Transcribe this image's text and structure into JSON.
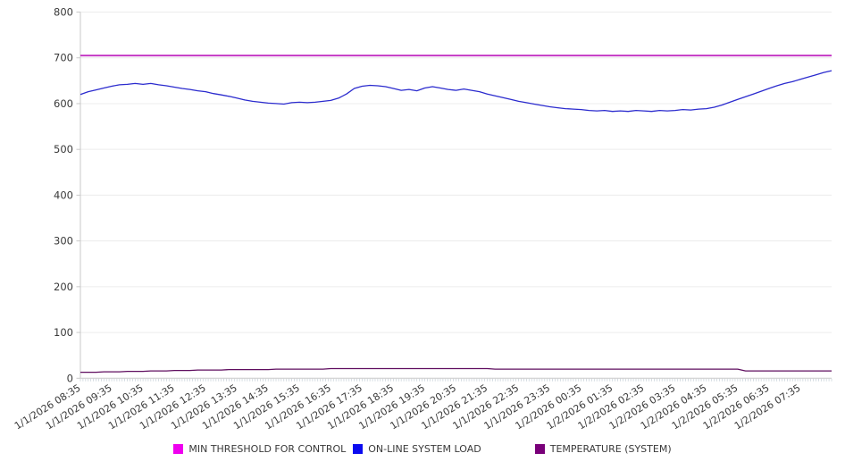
{
  "chart_data": {
    "type": "line",
    "title": "",
    "grid": "horizontal",
    "legend_position": "bottom",
    "y_axis": {
      "min": 0,
      "max": 800,
      "tick_step": 100,
      "ticks": [
        0,
        100,
        200,
        300,
        400,
        500,
        600,
        700,
        800
      ]
    },
    "x_axis": {
      "label_rotation_deg": -32,
      "hours_span": 24,
      "minor_ticks": 288,
      "labels": [
        "1/1/2026 08:35",
        "1/1/2026 09:35",
        "1/1/2026 10:35",
        "1/1/2026 11:35",
        "1/1/2026 12:35",
        "1/1/2026 13:35",
        "1/1/2026 14:35",
        "1/1/2026 15:35",
        "1/1/2026 16:35",
        "1/1/2026 17:35",
        "1/1/2026 18:35",
        "1/1/2026 19:35",
        "1/1/2026 20:35",
        "1/1/2026 21:35",
        "1/1/2026 22:35",
        "1/1/2026 23:35",
        "1/2/2026 00:35",
        "1/2/2026 01:35",
        "1/2/2026 02:35",
        "1/2/2026 03:35",
        "1/2/2026 04:35",
        "1/2/2026 05:35",
        "1/2/2026 06:35",
        "1/2/2026 07:35"
      ]
    },
    "series": [
      {
        "name": "MIN THRESHOLD FOR CONTROL",
        "swatch_color": "#ef00ef",
        "line_color": "#c22fc2",
        "line_width": 1.8,
        "kind": "constant",
        "value": 705,
        "values": [
          705,
          705
        ]
      },
      {
        "name": "ON-LINE SYSTEM LOAD",
        "swatch_color": "#0b0bf0",
        "line_color": "#2b2bce",
        "line_width": 1.3,
        "kind": "line",
        "sample_interval_minutes": 15,
        "values": [
          620,
          626,
          630,
          634,
          638,
          641,
          642,
          644,
          642,
          644,
          641,
          639,
          636,
          633,
          631,
          628,
          626,
          622,
          619,
          616,
          612,
          608,
          605,
          603,
          601,
          600,
          599,
          602,
          603,
          602,
          603,
          605,
          607,
          612,
          621,
          633,
          638,
          640,
          639,
          637,
          633,
          629,
          631,
          628,
          634,
          637,
          634,
          631,
          629,
          632,
          629,
          626,
          621,
          617,
          613,
          609,
          605,
          602,
          599,
          596,
          593,
          591,
          589,
          588,
          587,
          585,
          584,
          585,
          583,
          584,
          583,
          585,
          584,
          583,
          585,
          584,
          585,
          587,
          586,
          588,
          589,
          592,
          597,
          603,
          609,
          615,
          621,
          627,
          633,
          639,
          644,
          648,
          653,
          658,
          663,
          668,
          672
        ]
      },
      {
        "name": "TEMPERATURE (SYSTEM)",
        "swatch_color": "#790079",
        "line_color": "#5f0d5f",
        "line_width": 1.3,
        "kind": "line",
        "sample_interval_minutes": 15,
        "values": [
          13,
          13,
          13,
          14,
          14,
          14,
          15,
          15,
          15,
          16,
          16,
          16,
          17,
          17,
          17,
          18,
          18,
          18,
          18,
          19,
          19,
          19,
          19,
          19,
          19,
          20,
          20,
          20,
          20,
          20,
          20,
          20,
          21,
          21,
          21,
          21,
          21,
          21,
          21,
          21,
          21,
          21,
          21,
          21,
          21,
          21,
          21,
          21,
          21,
          21,
          21,
          21,
          21,
          20,
          20,
          20,
          20,
          20,
          20,
          20,
          20,
          20,
          20,
          20,
          20,
          20,
          20,
          20,
          20,
          20,
          20,
          20,
          20,
          20,
          20,
          20,
          20,
          20,
          20,
          20,
          20,
          20,
          20,
          20,
          20,
          16,
          16,
          16,
          16,
          16,
          16,
          16,
          16,
          16,
          16,
          16,
          16
        ]
      }
    ],
    "colors": {
      "gridline": "#ececec",
      "axis_line": "#c9c9c9",
      "minor_tick": "#c3ced6",
      "axis_text": "#3a3a3a",
      "background": "#ffffff"
    }
  }
}
